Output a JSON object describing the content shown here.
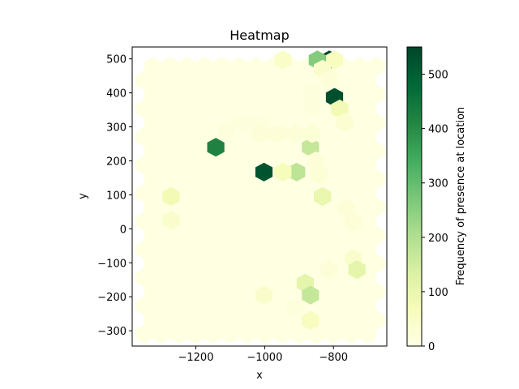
{
  "chart_data": {
    "type": "heatmap",
    "title": "Heatmap",
    "xlabel": "x",
    "ylabel": "y",
    "xlim": [
      -1385,
      -645
    ],
    "ylim": [
      -345,
      535
    ],
    "x_ticks": [
      {
        "value": -1200,
        "label": "−1200"
      },
      {
        "value": -1000,
        "label": "−1000"
      },
      {
        "value": -800,
        "label": "−800"
      }
    ],
    "y_ticks": [
      {
        "value": -300,
        "label": "−300"
      },
      {
        "value": -200,
        "label": "−200"
      },
      {
        "value": -100,
        "label": "−100"
      },
      {
        "value": 0,
        "label": "0"
      },
      {
        "value": 100,
        "label": "100"
      },
      {
        "value": 200,
        "label": "200"
      },
      {
        "value": 300,
        "label": "300"
      },
      {
        "value": 400,
        "label": "400"
      },
      {
        "value": 500,
        "label": "500"
      }
    ],
    "colorbar": {
      "label": "Frequency of presence at location",
      "colormap": "YlGn",
      "min": 0,
      "max": 550,
      "ticks": [
        {
          "value": 0,
          "label": "0"
        },
        {
          "value": 100,
          "label": "100"
        },
        {
          "value": 200,
          "label": "200"
        },
        {
          "value": 300,
          "label": "300"
        },
        {
          "value": 400,
          "label": "400"
        },
        {
          "value": 500,
          "label": "500"
        }
      ]
    },
    "hexbin": {
      "x_range": [
        -1350,
        -670
      ],
      "y_range": [
        -310,
        510
      ],
      "column_spacing": 50,
      "row_spacing": 41.5,
      "background_value": 4
    },
    "cells": [
      {
        "x": -812,
        "y": 497,
        "value": 545
      },
      {
        "x": -847,
        "y": 497,
        "value": 260
      },
      {
        "x": -797,
        "y": 497,
        "value": 60
      },
      {
        "x": -947,
        "y": 497,
        "value": 45
      },
      {
        "x": -832,
        "y": 470,
        "value": 40
      },
      {
        "x": -797,
        "y": 387,
        "value": 530
      },
      {
        "x": -782,
        "y": 353,
        "value": 80
      },
      {
        "x": -767,
        "y": 313,
        "value": 30
      },
      {
        "x": -1142,
        "y": 240,
        "value": 420
      },
      {
        "x": -1002,
        "y": 167,
        "value": 520
      },
      {
        "x": -867,
        "y": 240,
        "value": 170
      },
      {
        "x": -907,
        "y": 167,
        "value": 180
      },
      {
        "x": -947,
        "y": 167,
        "value": 70
      },
      {
        "x": -832,
        "y": 95,
        "value": 100
      },
      {
        "x": -1272,
        "y": 95,
        "value": 80
      },
      {
        "x": -1272,
        "y": 25,
        "value": 40
      },
      {
        "x": -742,
        "y": -88,
        "value": 40
      },
      {
        "x": -732,
        "y": -120,
        "value": 110
      },
      {
        "x": -882,
        "y": -160,
        "value": 110
      },
      {
        "x": -867,
        "y": -195,
        "value": 170
      },
      {
        "x": -1002,
        "y": -195,
        "value": 40
      },
      {
        "x": -867,
        "y": -270,
        "value": 60
      },
      {
        "x": -812,
        "y": 440,
        "value": 20
      },
      {
        "x": -1112,
        "y": 290,
        "value": 15
      },
      {
        "x": -1062,
        "y": 310,
        "value": 15
      },
      {
        "x": -1012,
        "y": 310,
        "value": 15
      },
      {
        "x": -962,
        "y": 280,
        "value": 20
      },
      {
        "x": -912,
        "y": 280,
        "value": 20
      },
      {
        "x": -862,
        "y": 280,
        "value": 25
      },
      {
        "x": -1012,
        "y": 280,
        "value": 20
      },
      {
        "x": -852,
        "y": 200,
        "value": 20
      },
      {
        "x": -842,
        "y": 160,
        "value": 25
      },
      {
        "x": -762,
        "y": 60,
        "value": 20
      },
      {
        "x": -742,
        "y": 20,
        "value": 20
      },
      {
        "x": -812,
        "y": -120,
        "value": 20
      },
      {
        "x": -912,
        "y": -230,
        "value": 15
      },
      {
        "x": -862,
        "y": 360,
        "value": 15
      },
      {
        "x": -862,
        "y": 400,
        "value": 15
      }
    ]
  }
}
